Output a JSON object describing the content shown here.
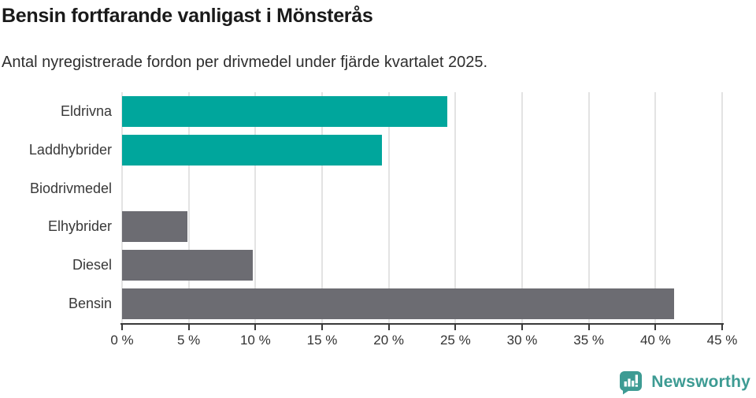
{
  "header": {
    "title": "Bensin fortfarande vanligast i Mönsterås",
    "subtitle": "Antal nyregistrerade fordon per drivmedel under fjärde kvartalet 2025."
  },
  "chart_data": {
    "type": "bar",
    "orientation": "horizontal",
    "categories": [
      "Eldrivna",
      "Laddhybrider",
      "Biodrivmedel",
      "Elhybrider",
      "Diesel",
      "Bensin"
    ],
    "values": [
      24.4,
      19.5,
      0,
      4.9,
      9.8,
      41.4
    ],
    "unit": "%",
    "bar_colors": [
      "#00a69c",
      "#00a69c",
      "#6c6c72",
      "#6c6c72",
      "#6c6c72",
      "#6c6c72"
    ],
    "title": "Bensin fortfarande vanligast i Mönsterås",
    "xlabel": "",
    "ylabel": "",
    "xlim": [
      0,
      45
    ],
    "xticks": [
      0,
      5,
      10,
      15,
      20,
      25,
      30,
      35,
      40,
      45
    ],
    "xtick_labels": [
      "0 %",
      "5 %",
      "10 %",
      "15 %",
      "20 %",
      "25 %",
      "30 %",
      "35 %",
      "40 %",
      "45 %"
    ],
    "grid": "vertical-only",
    "legend": "none"
  },
  "colors": {
    "accent_teal": "#00a69c",
    "bar_gray": "#6c6c72",
    "gridline": "#e3e3e3",
    "axis": "#3a3a3a",
    "title_text": "#1a1a1a",
    "body_text": "#2e2e2e",
    "tick_text": "#333333",
    "logo_teal": "#3d9b93",
    "background": "#ffffff"
  },
  "footer": {
    "brand": "Newsworthy"
  }
}
